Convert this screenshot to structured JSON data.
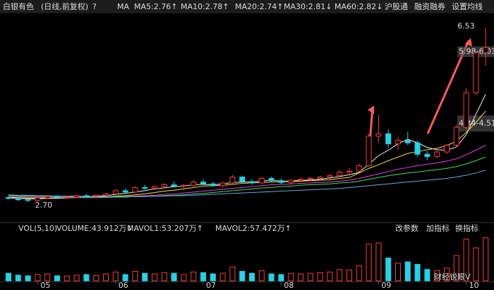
{
  "header": {
    "title": "白银有色",
    "mode": "(日线,前复权)",
    "help": "?",
    "ma_label": "MA",
    "buttons": [
      "沪股通",
      "融资融券",
      "设置均线"
    ]
  },
  "watermark": "财经锐眼V",
  "chart_data": [
    {
      "type": "candlestick",
      "up_color": "#ff3b3b",
      "down_color": "#22d3e6",
      "ylim": [
        2.5,
        6.8
      ],
      "categories": [
        null,
        null,
        null,
        "05",
        null,
        null,
        null,
        null,
        null,
        null,
        null,
        "06",
        null,
        null,
        null,
        null,
        null,
        null,
        null,
        null,
        "07",
        null,
        null,
        null,
        null,
        null,
        null,
        null,
        "08",
        null,
        null,
        null,
        null,
        null,
        null,
        null,
        null,
        null,
        "09",
        null,
        null,
        null,
        null,
        null,
        null,
        null,
        null,
        "10",
        null,
        null
      ],
      "open": [
        2.8,
        2.78,
        2.75,
        2.74,
        2.79,
        2.82,
        2.8,
        2.81,
        2.84,
        2.83,
        2.85,
        2.88,
        2.95,
        2.92,
        3.02,
        3.0,
        3.04,
        3.08,
        3.05,
        3.07,
        3.14,
        3.1,
        3.06,
        3.12,
        3.25,
        3.15,
        3.12,
        3.22,
        3.17,
        3.13,
        3.18,
        3.2,
        3.22,
        3.25,
        3.28,
        3.36,
        3.38,
        3.5,
        4.15,
        4.2,
        3.98,
        4.05,
        4.0,
        3.75,
        3.7,
        3.8,
        3.95,
        4.34,
        5.1,
        5.98
      ],
      "high": [
        2.83,
        2.8,
        2.78,
        2.8,
        2.84,
        2.85,
        2.83,
        2.86,
        2.88,
        2.86,
        2.9,
        2.98,
        3.0,
        3.05,
        3.08,
        3.06,
        3.12,
        3.15,
        3.1,
        3.18,
        3.2,
        3.15,
        3.14,
        3.3,
        3.28,
        3.2,
        3.25,
        3.26,
        3.22,
        3.2,
        3.24,
        3.26,
        3.28,
        3.32,
        3.4,
        3.45,
        3.55,
        4.2,
        4.62,
        4.3,
        4.12,
        4.25,
        4.05,
        3.82,
        3.85,
        3.98,
        4.4,
        5.2,
        6.03,
        6.53
      ],
      "low": [
        2.76,
        2.73,
        2.7,
        2.72,
        2.77,
        2.78,
        2.77,
        2.79,
        2.81,
        2.8,
        2.83,
        2.86,
        2.9,
        2.9,
        2.97,
        2.96,
        3.0,
        3.02,
        3.0,
        3.04,
        3.08,
        3.03,
        3.02,
        3.1,
        3.12,
        3.08,
        3.1,
        3.14,
        3.1,
        3.08,
        3.14,
        3.16,
        3.18,
        3.2,
        3.25,
        3.3,
        3.35,
        3.48,
        4.0,
        3.9,
        3.85,
        3.95,
        3.7,
        3.62,
        3.66,
        3.76,
        3.9,
        4.3,
        5.05,
        5.7
      ],
      "close": [
        2.78,
        2.75,
        2.74,
        2.79,
        2.82,
        2.8,
        2.81,
        2.84,
        2.83,
        2.85,
        2.88,
        2.95,
        2.92,
        3.02,
        3.0,
        3.04,
        3.08,
        3.05,
        3.07,
        3.14,
        3.1,
        3.06,
        3.12,
        3.25,
        3.15,
        3.12,
        3.22,
        3.17,
        3.13,
        3.18,
        3.2,
        3.22,
        3.25,
        3.28,
        3.36,
        3.38,
        3.5,
        4.15,
        4.2,
        3.98,
        4.05,
        4.0,
        3.75,
        3.7,
        3.8,
        3.95,
        4.34,
        5.1,
        5.98,
        6.1
      ],
      "series": [
        {
          "name": "MA5:2.76↑",
          "color": "#f0f0f0",
          "values": [
            2.79,
            2.78,
            2.77,
            2.77,
            2.78,
            2.78,
            2.79,
            2.81,
            2.82,
            2.83,
            2.84,
            2.87,
            2.89,
            2.92,
            2.95,
            2.99,
            3.01,
            3.04,
            3.05,
            3.08,
            3.09,
            3.08,
            3.1,
            3.13,
            3.14,
            3.14,
            3.16,
            3.18,
            3.16,
            3.16,
            3.18,
            3.18,
            3.2,
            3.23,
            3.26,
            3.3,
            3.35,
            3.53,
            3.72,
            3.84,
            3.98,
            4.08,
            4.0,
            3.9,
            3.85,
            3.84,
            3.91,
            4.18,
            4.63,
            5.07
          ]
        },
        {
          "name": "MA10:2.78↑",
          "color": "#f5e33c",
          "values": [
            2.8,
            2.8,
            2.79,
            2.79,
            2.79,
            2.79,
            2.79,
            2.8,
            2.8,
            2.8,
            2.81,
            2.83,
            2.84,
            2.86,
            2.88,
            2.91,
            2.94,
            2.96,
            2.99,
            3.02,
            3.05,
            3.06,
            3.07,
            3.09,
            3.11,
            3.12,
            3.13,
            3.14,
            3.15,
            3.15,
            3.16,
            3.17,
            3.18,
            3.19,
            3.22,
            3.24,
            3.34,
            3.44,
            3.52,
            3.61,
            3.69,
            3.77,
            3.81,
            3.85,
            3.88,
            3.94,
            4.04,
            4.23,
            4.45,
            4.7
          ]
        },
        {
          "name": "MA20:2.74↑",
          "color": "#e040e0",
          "values": [
            2.82,
            2.82,
            2.81,
            2.81,
            2.8,
            2.8,
            2.8,
            2.8,
            2.8,
            2.8,
            2.8,
            2.81,
            2.82,
            2.83,
            2.84,
            2.85,
            2.87,
            2.88,
            2.9,
            2.92,
            2.94,
            2.96,
            2.98,
            3.0,
            3.02,
            3.04,
            3.06,
            3.08,
            3.09,
            3.1,
            3.11,
            3.12,
            3.13,
            3.14,
            3.16,
            3.18,
            3.22,
            3.27,
            3.32,
            3.37,
            3.42,
            3.46,
            3.5,
            3.53,
            3.56,
            3.6,
            3.65,
            3.74,
            3.84,
            3.95
          ]
        },
        {
          "name": "MA30:2.81↓",
          "color": "#3ee05a",
          "values": [
            2.84,
            2.84,
            2.83,
            2.83,
            2.82,
            2.82,
            2.82,
            2.81,
            2.81,
            2.81,
            2.81,
            2.81,
            2.81,
            2.82,
            2.82,
            2.83,
            2.84,
            2.85,
            2.86,
            2.88,
            2.89,
            2.91,
            2.93,
            2.95,
            2.97,
            2.99,
            3.01,
            3.02,
            3.04,
            3.05,
            3.07,
            3.08,
            3.09,
            3.1,
            3.12,
            3.13,
            3.16,
            3.2,
            3.24,
            3.28,
            3.31,
            3.34,
            3.36,
            3.39,
            3.41,
            3.44,
            3.48,
            3.54,
            3.61,
            3.69
          ]
        },
        {
          "name": "MA60:2.82↓",
          "color": "#6fa8dc",
          "values": [
            2.86,
            2.85,
            2.85,
            2.84,
            2.84,
            2.83,
            2.83,
            2.83,
            2.82,
            2.82,
            2.82,
            2.82,
            2.82,
            2.82,
            2.82,
            2.83,
            2.83,
            2.84,
            2.84,
            2.85,
            2.86,
            2.87,
            2.88,
            2.89,
            2.9,
            2.91,
            2.92,
            2.93,
            2.94,
            2.95,
            2.96,
            2.97,
            2.98,
            2.99,
            3.0,
            3.02,
            3.04,
            3.06,
            3.08,
            3.1,
            3.12,
            3.14,
            3.16,
            3.18,
            3.2,
            3.22,
            3.25,
            3.29,
            3.34,
            3.4
          ]
        }
      ],
      "annotations": [
        {
          "label": "6.53",
          "value": 6.53
        },
        {
          "label": "2.70",
          "value": 2.7
        }
      ],
      "bands": [
        {
          "label": "5.98-6.03",
          "low": 5.98,
          "high": 6.03
        },
        {
          "label": "4.34-4.51",
          "low": 4.34,
          "high": 4.51
        }
      ]
    },
    {
      "type": "bar",
      "title": "VOL(5,10)",
      "ylim": [
        0,
        350
      ],
      "legend": [
        {
          "text": "VOLUME:43.912万↓",
          "color": "#f0f0f0"
        },
        {
          "text": "MAVOL1:53.207万↑",
          "color": "#f5e33c"
        },
        {
          "text": "MAVOL2:57.472万↑",
          "color": "#e040e0"
        }
      ],
      "buttons": [
        "改参数",
        "加指标",
        "换指标"
      ],
      "values": [
        60,
        45,
        40,
        50,
        55,
        40,
        38,
        45,
        50,
        42,
        55,
        70,
        50,
        75,
        60,
        55,
        65,
        60,
        50,
        70,
        65,
        55,
        60,
        110,
        75,
        60,
        80,
        55,
        50,
        60,
        55,
        60,
        65,
        70,
        90,
        85,
        120,
        290,
        300,
        180,
        140,
        150,
        130,
        90,
        80,
        100,
        200,
        330,
        260,
        340
      ]
    }
  ]
}
